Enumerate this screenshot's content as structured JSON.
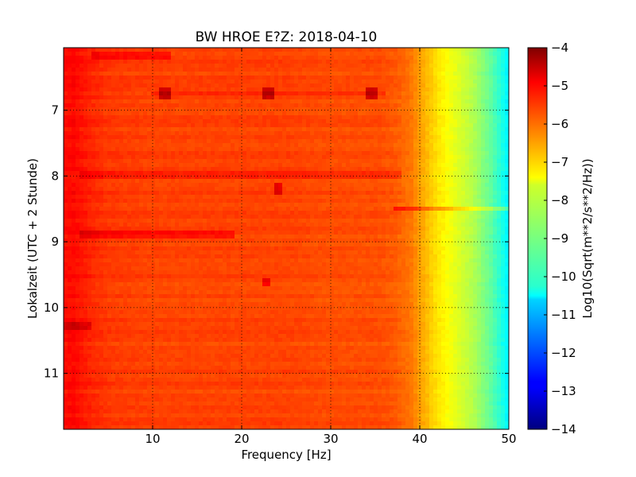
{
  "chart_data": {
    "type": "heatmap",
    "title": "BW HROE E?Z: 2018-04-10",
    "xlabel": "Frequency [Hz]",
    "ylabel": "Lokalzeit (UTC + 2 Stunde)",
    "xlim": [
      0,
      50
    ],
    "ylim": [
      11.85,
      6.05
    ],
    "y_inverted": true,
    "grid": true,
    "grid_style": "dotted",
    "x_ticks": [
      10,
      20,
      30,
      40,
      50
    ],
    "x_tick_labels": [
      "10",
      "20",
      "30",
      "40",
      "50"
    ],
    "y_ticks": [
      7,
      8,
      9,
      10,
      11
    ],
    "y_tick_labels": [
      "7",
      "8",
      "9",
      "10",
      "11"
    ],
    "colormap": "jet",
    "colorbar": {
      "label": "Log10(Sqrt(m**2/s**2/Hz))",
      "range": [
        -14,
        -4
      ],
      "ticks": [
        -4,
        -5,
        -6,
        -7,
        -8,
        -9,
        -10,
        -11,
        -12,
        -13,
        -14
      ],
      "tick_labels": [
        "−4",
        "−5",
        "−6",
        "−7",
        "−8",
        "−9",
        "−10",
        "−11",
        "−12",
        "−13",
        "−14"
      ]
    },
    "spectrum_profile": {
      "frequency_hz": [
        0,
        1,
        3,
        5,
        10,
        15,
        20,
        25,
        30,
        35,
        37,
        39,
        40,
        42,
        44,
        46,
        48,
        50
      ],
      "log_amplitude": [
        -5.4,
        -5.3,
        -5.6,
        -5.8,
        -5.9,
        -5.9,
        -5.9,
        -5.9,
        -6.0,
        -6.0,
        -6.1,
        -6.4,
        -6.8,
        -7.5,
        -8.0,
        -8.5,
        -9.3,
        -10.4
      ]
    },
    "band_features": [
      {
        "time_h": 6.15,
        "f_from": 3,
        "f_to": 12,
        "delta": 0.5
      },
      {
        "time_h": 6.75,
        "f_from": 10,
        "f_to": 36,
        "delta": 0.35
      },
      {
        "time_h": 8.0,
        "f_from": 2,
        "f_to": 38,
        "delta": 0.45
      },
      {
        "time_h": 8.5,
        "f_from": 37,
        "f_to": 50,
        "delta": 0.8
      },
      {
        "time_h": 8.88,
        "f_from": 2,
        "f_to": 19,
        "delta": 0.55
      },
      {
        "time_h": 10.3,
        "f_from": 0,
        "f_to": 3,
        "delta": 0.6
      }
    ],
    "spot_features": [
      {
        "time_h": 6.75,
        "freq_hz": 11.5,
        "delta": 1.1
      },
      {
        "time_h": 6.75,
        "freq_hz": 22.9,
        "delta": 1.1
      },
      {
        "time_h": 6.75,
        "freq_hz": 34.6,
        "delta": 1.1
      },
      {
        "time_h": 8.2,
        "freq_hz": 24.1,
        "delta": 0.9
      },
      {
        "time_h": 9.6,
        "freq_hz": 22.7,
        "delta": 0.8
      }
    ]
  }
}
